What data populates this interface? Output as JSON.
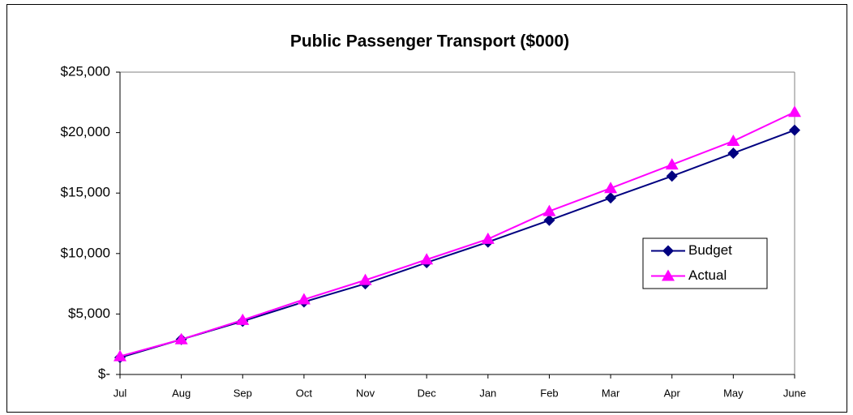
{
  "chart_data": {
    "type": "line",
    "title": "Public Passenger Transport ($000)",
    "categories": [
      "Jul",
      "Aug",
      "Sep",
      "Oct",
      "Nov",
      "Dec",
      "Jan",
      "Feb",
      "Mar",
      "Apr",
      "May",
      "June"
    ],
    "series": [
      {
        "name": "Budget",
        "color": "#000080",
        "marker": "diamond",
        "values": [
          1400,
          2900,
          4400,
          6000,
          7500,
          9250,
          10950,
          12750,
          14600,
          16400,
          18300,
          20200
        ]
      },
      {
        "name": "Actual",
        "color": "#ff00ff",
        "marker": "triangle",
        "values": [
          1500,
          2900,
          4500,
          6200,
          7800,
          9500,
          11200,
          13500,
          15400,
          17350,
          19300,
          21700
        ]
      }
    ],
    "ylim": [
      0,
      25000
    ],
    "yticks": [
      {
        "value": 0,
        "label": "$-"
      },
      {
        "value": 5000,
        "label": "$5,000"
      },
      {
        "value": 10000,
        "label": "$10,000"
      },
      {
        "value": 15000,
        "label": "$15,000"
      },
      {
        "value": 20000,
        "label": "$20,000"
      },
      {
        "value": 25000,
        "label": "$25,000"
      }
    ],
    "grid": false,
    "legend": "right"
  }
}
